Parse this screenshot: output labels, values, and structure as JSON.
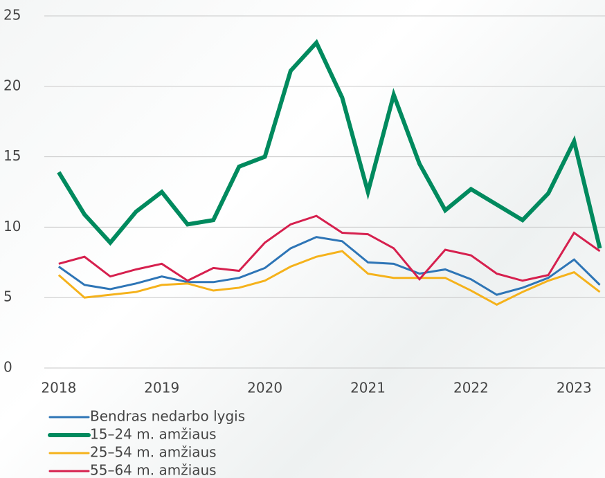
{
  "chart_data": {
    "type": "line",
    "x": [
      2018,
      2018.25,
      2018.5,
      2018.75,
      2019,
      2019.25,
      2019.5,
      2019.75,
      2020,
      2020.25,
      2020.5,
      2020.75,
      2021,
      2021.25,
      2021.5,
      2021.75,
      2022,
      2022.25,
      2022.5,
      2022.75,
      2023,
      2023.25
    ],
    "series": [
      {
        "name": "Bendras nedarbo lygis",
        "color": "#2e75b6",
        "line_width": 3,
        "values": [
          7.2,
          5.9,
          5.6,
          6.0,
          6.5,
          6.1,
          6.1,
          6.4,
          7.1,
          8.5,
          9.3,
          9.0,
          7.5,
          7.4,
          6.7,
          7.0,
          6.3,
          5.2,
          5.7,
          6.4,
          7.7,
          5.9
        ]
      },
      {
        "name": "15–24 m. amžiaus",
        "color": "#008a5e",
        "line_width": 6,
        "values": [
          13.9,
          10.9,
          8.9,
          11.1,
          12.5,
          10.2,
          10.5,
          14.3,
          15.0,
          21.1,
          23.1,
          19.2,
          12.5,
          19.4,
          14.5,
          11.2,
          12.7,
          11.6,
          10.5,
          12.4,
          16.1,
          8.5
        ]
      },
      {
        "name": "25–54 m. amžiaus",
        "color": "#f5b21b",
        "line_width": 3,
        "values": [
          6.6,
          5.0,
          5.2,
          5.4,
          5.9,
          6.0,
          5.5,
          5.7,
          6.2,
          7.2,
          7.9,
          8.3,
          6.7,
          6.4,
          6.4,
          6.4,
          5.5,
          4.5,
          5.4,
          6.2,
          6.8,
          5.4
        ]
      },
      {
        "name": "55–64 m. amžiaus",
        "color": "#d6204e",
        "line_width": 3,
        "values": [
          7.4,
          7.9,
          6.5,
          7.0,
          7.4,
          6.2,
          7.1,
          6.9,
          8.9,
          10.2,
          10.8,
          9.6,
          9.5,
          8.5,
          6.3,
          8.4,
          8.0,
          6.7,
          6.2,
          6.6,
          9.6,
          8.3
        ]
      }
    ],
    "xlim": [
      2017.86,
      2023.3
    ],
    "xticks": [
      2018,
      2019,
      2020,
      2021,
      2022,
      2023
    ],
    "ylim": [
      0,
      25
    ],
    "yticks": [
      0,
      5,
      10,
      15,
      20,
      25
    ],
    "grid": true,
    "legend": "bottom-left"
  }
}
